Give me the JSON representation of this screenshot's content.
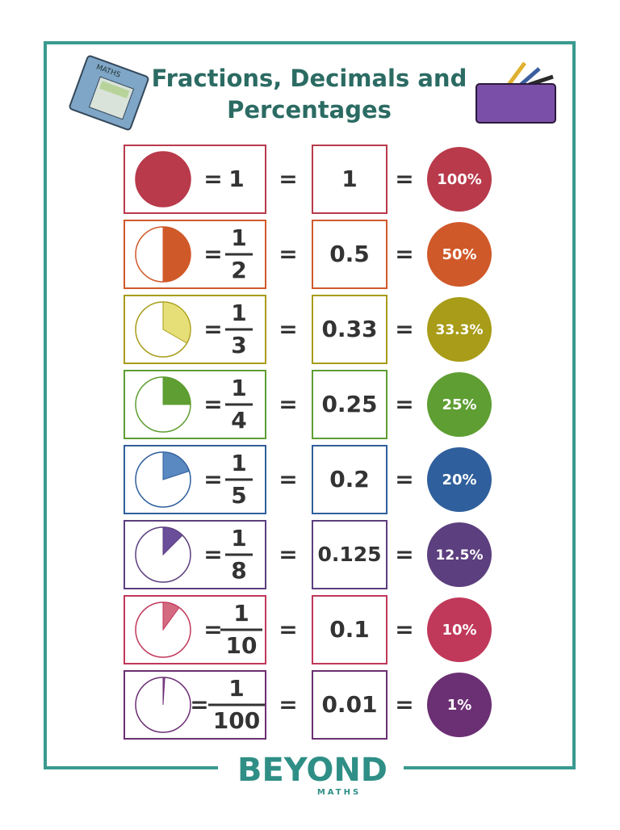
{
  "header": {
    "title_lines": [
      "Fractions, Decimals and",
      "Percentages"
    ],
    "book_label": "MATHS"
  },
  "equals": "=",
  "rows": [
    {
      "fraction": {
        "numerator": "1"
      },
      "decimal": "1",
      "percent": "100%",
      "color": "#b83a4b",
      "fill": "#b83a4b"
    },
    {
      "fraction": {
        "numerator": "1",
        "denominator": "2"
      },
      "decimal": "0.5",
      "percent": "50%",
      "color": "#d0592a",
      "fill": "#d0592a"
    },
    {
      "fraction": {
        "numerator": "1",
        "denominator": "3"
      },
      "decimal": "0.33",
      "percent": "33.3%",
      "color": "#a89c18",
      "fill": "#e6df78"
    },
    {
      "fraction": {
        "numerator": "1",
        "denominator": "4"
      },
      "decimal": "0.25",
      "percent": "25%",
      "color": "#5e9e32",
      "fill": "#5e9e32"
    },
    {
      "fraction": {
        "numerator": "1",
        "denominator": "5"
      },
      "decimal": "0.2",
      "percent": "20%",
      "color": "#2f5f9c",
      "fill": "#5a88c0"
    },
    {
      "fraction": {
        "numerator": "1",
        "denominator": "8"
      },
      "decimal": "0.125",
      "percent": "12.5%",
      "color": "#5c3f7e",
      "fill": "#6a4e9a"
    },
    {
      "fraction": {
        "numerator": "1",
        "denominator": "10"
      },
      "decimal": "0.1",
      "percent": "10%",
      "color": "#c0385a",
      "fill": "#d46a80"
    },
    {
      "fraction": {
        "numerator": "1",
        "denominator": "100"
      },
      "decimal": "0.01",
      "percent": "1%",
      "color": "#6b2f73",
      "fill": "#8a4a90"
    }
  ],
  "footer": {
    "brand": "BEYOND",
    "tagline": "MATHS"
  }
}
